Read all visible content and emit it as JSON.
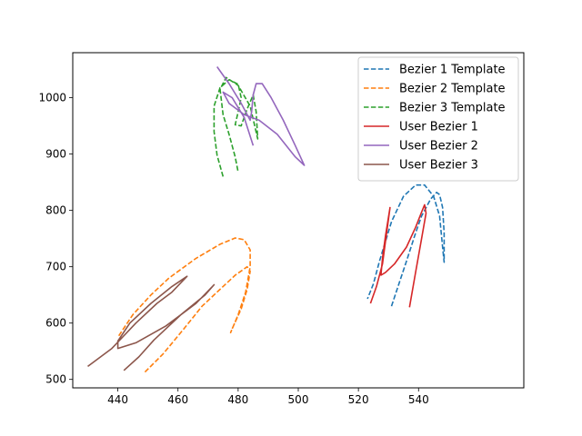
{
  "chart_data": {
    "type": "line",
    "xlim": [
      425,
      575
    ],
    "ylim": [
      485,
      1080
    ],
    "x_ticks": [
      440,
      460,
      480,
      500,
      520,
      540
    ],
    "y_ticks": [
      500,
      600,
      700,
      800,
      900,
      1000
    ],
    "grid": false,
    "legend_position": "top-right",
    "series": [
      {
        "name": "Bezier 1 Template",
        "color": "#1f77b4",
        "style": "dashed",
        "points": [
          [
            531,
            630
          ],
          [
            533,
            662
          ],
          [
            536,
            710
          ],
          [
            539,
            760
          ],
          [
            541,
            790
          ],
          [
            544,
            820
          ],
          [
            546,
            832
          ],
          [
            547,
            828
          ],
          [
            548,
            805
          ],
          [
            548.5,
            760
          ],
          [
            548.5,
            708
          ],
          [
            548,
            735
          ],
          [
            547,
            790
          ],
          [
            545,
            825
          ],
          [
            542,
            845
          ],
          [
            539,
            845
          ],
          [
            535,
            825
          ],
          [
            531,
            780
          ],
          [
            527,
            710
          ],
          [
            525,
            670
          ],
          [
            523,
            643
          ]
        ]
      },
      {
        "name": "Bezier 2 Template",
        "color": "#ff7f0e",
        "style": "dashed",
        "points": [
          [
            449,
            513
          ],
          [
            455,
            545
          ],
          [
            462,
            590
          ],
          [
            468,
            630
          ],
          [
            474,
            660
          ],
          [
            479,
            685
          ],
          [
            483,
            700
          ],
          [
            484,
            692
          ],
          [
            483,
            660
          ],
          [
            481,
            625
          ],
          [
            478,
            590
          ],
          [
            477.5,
            583
          ],
          [
            480,
            615
          ],
          [
            482.5,
            655
          ],
          [
            484,
            700
          ],
          [
            484,
            730
          ],
          [
            482,
            748
          ],
          [
            479,
            751
          ],
          [
            474,
            740
          ],
          [
            466,
            715
          ],
          [
            457,
            680
          ],
          [
            451,
            650
          ],
          [
            445,
            615
          ],
          [
            440,
            575
          ]
        ]
      },
      {
        "name": "Bezier 3 Template",
        "color": "#2ca02c",
        "style": "dashed",
        "points": [
          [
            475,
            860
          ],
          [
            473,
            898
          ],
          [
            472,
            940
          ],
          [
            472,
            985
          ],
          [
            474,
            1018
          ],
          [
            477,
            1032
          ],
          [
            480,
            1024
          ],
          [
            481,
            1000
          ],
          [
            480,
            975
          ],
          [
            479,
            952
          ],
          [
            481,
            950
          ],
          [
            483,
            980
          ],
          [
            485,
            1005
          ],
          [
            486,
            975
          ],
          [
            486.5,
            927
          ],
          [
            484,
            985
          ],
          [
            480,
            1022
          ],
          [
            476,
            1036
          ],
          [
            474,
            1015
          ],
          [
            475,
            970
          ],
          [
            477,
            935
          ],
          [
            479,
            895
          ],
          [
            480,
            868
          ]
        ]
      },
      {
        "name": "User Bezier 1",
        "color": "#d62728",
        "style": "solid",
        "points": [
          [
            524,
            635
          ],
          [
            526,
            665
          ],
          [
            528,
            705
          ],
          [
            529,
            745
          ],
          [
            530.5,
            805
          ],
          [
            529,
            755
          ],
          [
            528,
            715
          ],
          [
            527.5,
            685
          ],
          [
            529,
            690
          ],
          [
            532,
            705
          ],
          [
            536,
            735
          ],
          [
            539,
            770
          ],
          [
            541,
            797
          ],
          [
            542,
            810
          ],
          [
            542.5,
            795
          ],
          [
            541,
            750
          ],
          [
            539,
            690
          ],
          [
            537,
            628
          ]
        ]
      },
      {
        "name": "User Bezier 2",
        "color": "#9467bd",
        "style": "solid",
        "points": [
          [
            473,
            1055
          ],
          [
            477,
            1025
          ],
          [
            481,
            990
          ],
          [
            484,
            960
          ],
          [
            484.5,
            975
          ],
          [
            485,
            1005
          ],
          [
            486,
            1025
          ],
          [
            488,
            1025
          ],
          [
            491,
            1000
          ],
          [
            495,
            960
          ],
          [
            499,
            915
          ],
          [
            502,
            880
          ],
          [
            499,
            895
          ],
          [
            493,
            935
          ],
          [
            487,
            960
          ],
          [
            482,
            970
          ],
          [
            477,
            990
          ],
          [
            475,
            1010
          ],
          [
            478,
            1000
          ],
          [
            482,
            965
          ],
          [
            485,
            915
          ]
        ]
      },
      {
        "name": "User Bezier 3",
        "color": "#8c564b",
        "style": "solid",
        "points": [
          [
            430,
            523
          ],
          [
            438,
            555
          ],
          [
            446,
            600
          ],
          [
            453,
            635
          ],
          [
            458,
            655
          ],
          [
            463,
            683
          ],
          [
            458,
            665
          ],
          [
            451,
            635
          ],
          [
            444,
            600
          ],
          [
            440,
            568
          ],
          [
            440,
            555
          ],
          [
            446,
            565
          ],
          [
            456,
            595
          ],
          [
            466,
            635
          ],
          [
            472,
            668
          ],
          [
            469,
            650
          ],
          [
            461,
            615
          ],
          [
            452,
            570
          ],
          [
            447,
            540
          ],
          [
            442,
            516
          ]
        ]
      }
    ]
  }
}
